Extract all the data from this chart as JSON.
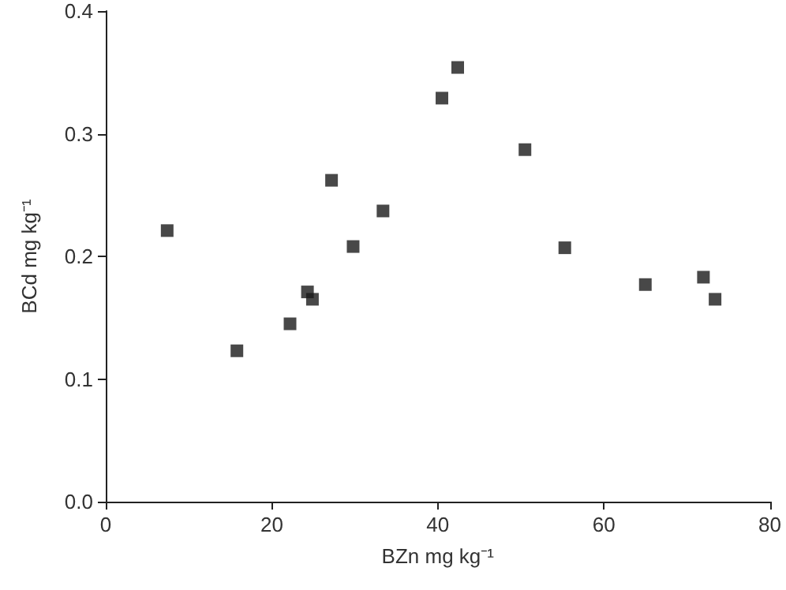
{
  "chart_data": {
    "type": "scatter",
    "xlabel": "BZn mg kg⁻¹",
    "ylabel": "BCd mg kg⁻¹",
    "marker": "square",
    "grid": false,
    "x": [
      7.4,
      15.8,
      22.2,
      24.3,
      24.9,
      27.2,
      29.8,
      33.4,
      40.5,
      42.4,
      50.5,
      55.3,
      65,
      72,
      73.4
    ],
    "series": [
      {
        "color": "#1a1a1a",
        "values": [
          0.221,
          0.123,
          0.145,
          0.171,
          0.165,
          0.262,
          0.208,
          0.237,
          0.329,
          0.354,
          0.287,
          0.207,
          0.177,
          0.183,
          0.165
        ]
      }
    ],
    "xlim": [
      0,
      80
    ],
    "xticks": [
      0,
      20,
      40,
      60,
      80
    ],
    "ylim": [
      0,
      0.4
    ],
    "yticks": [
      {
        "value": 0,
        "label": "0.0"
      },
      {
        "value": 0.1,
        "label": "0.1"
      },
      {
        "value": 0.2,
        "label": "0.2"
      },
      {
        "value": 0.3,
        "label": "0.3"
      },
      {
        "value": 0.4,
        "label": "0.4"
      }
    ]
  }
}
